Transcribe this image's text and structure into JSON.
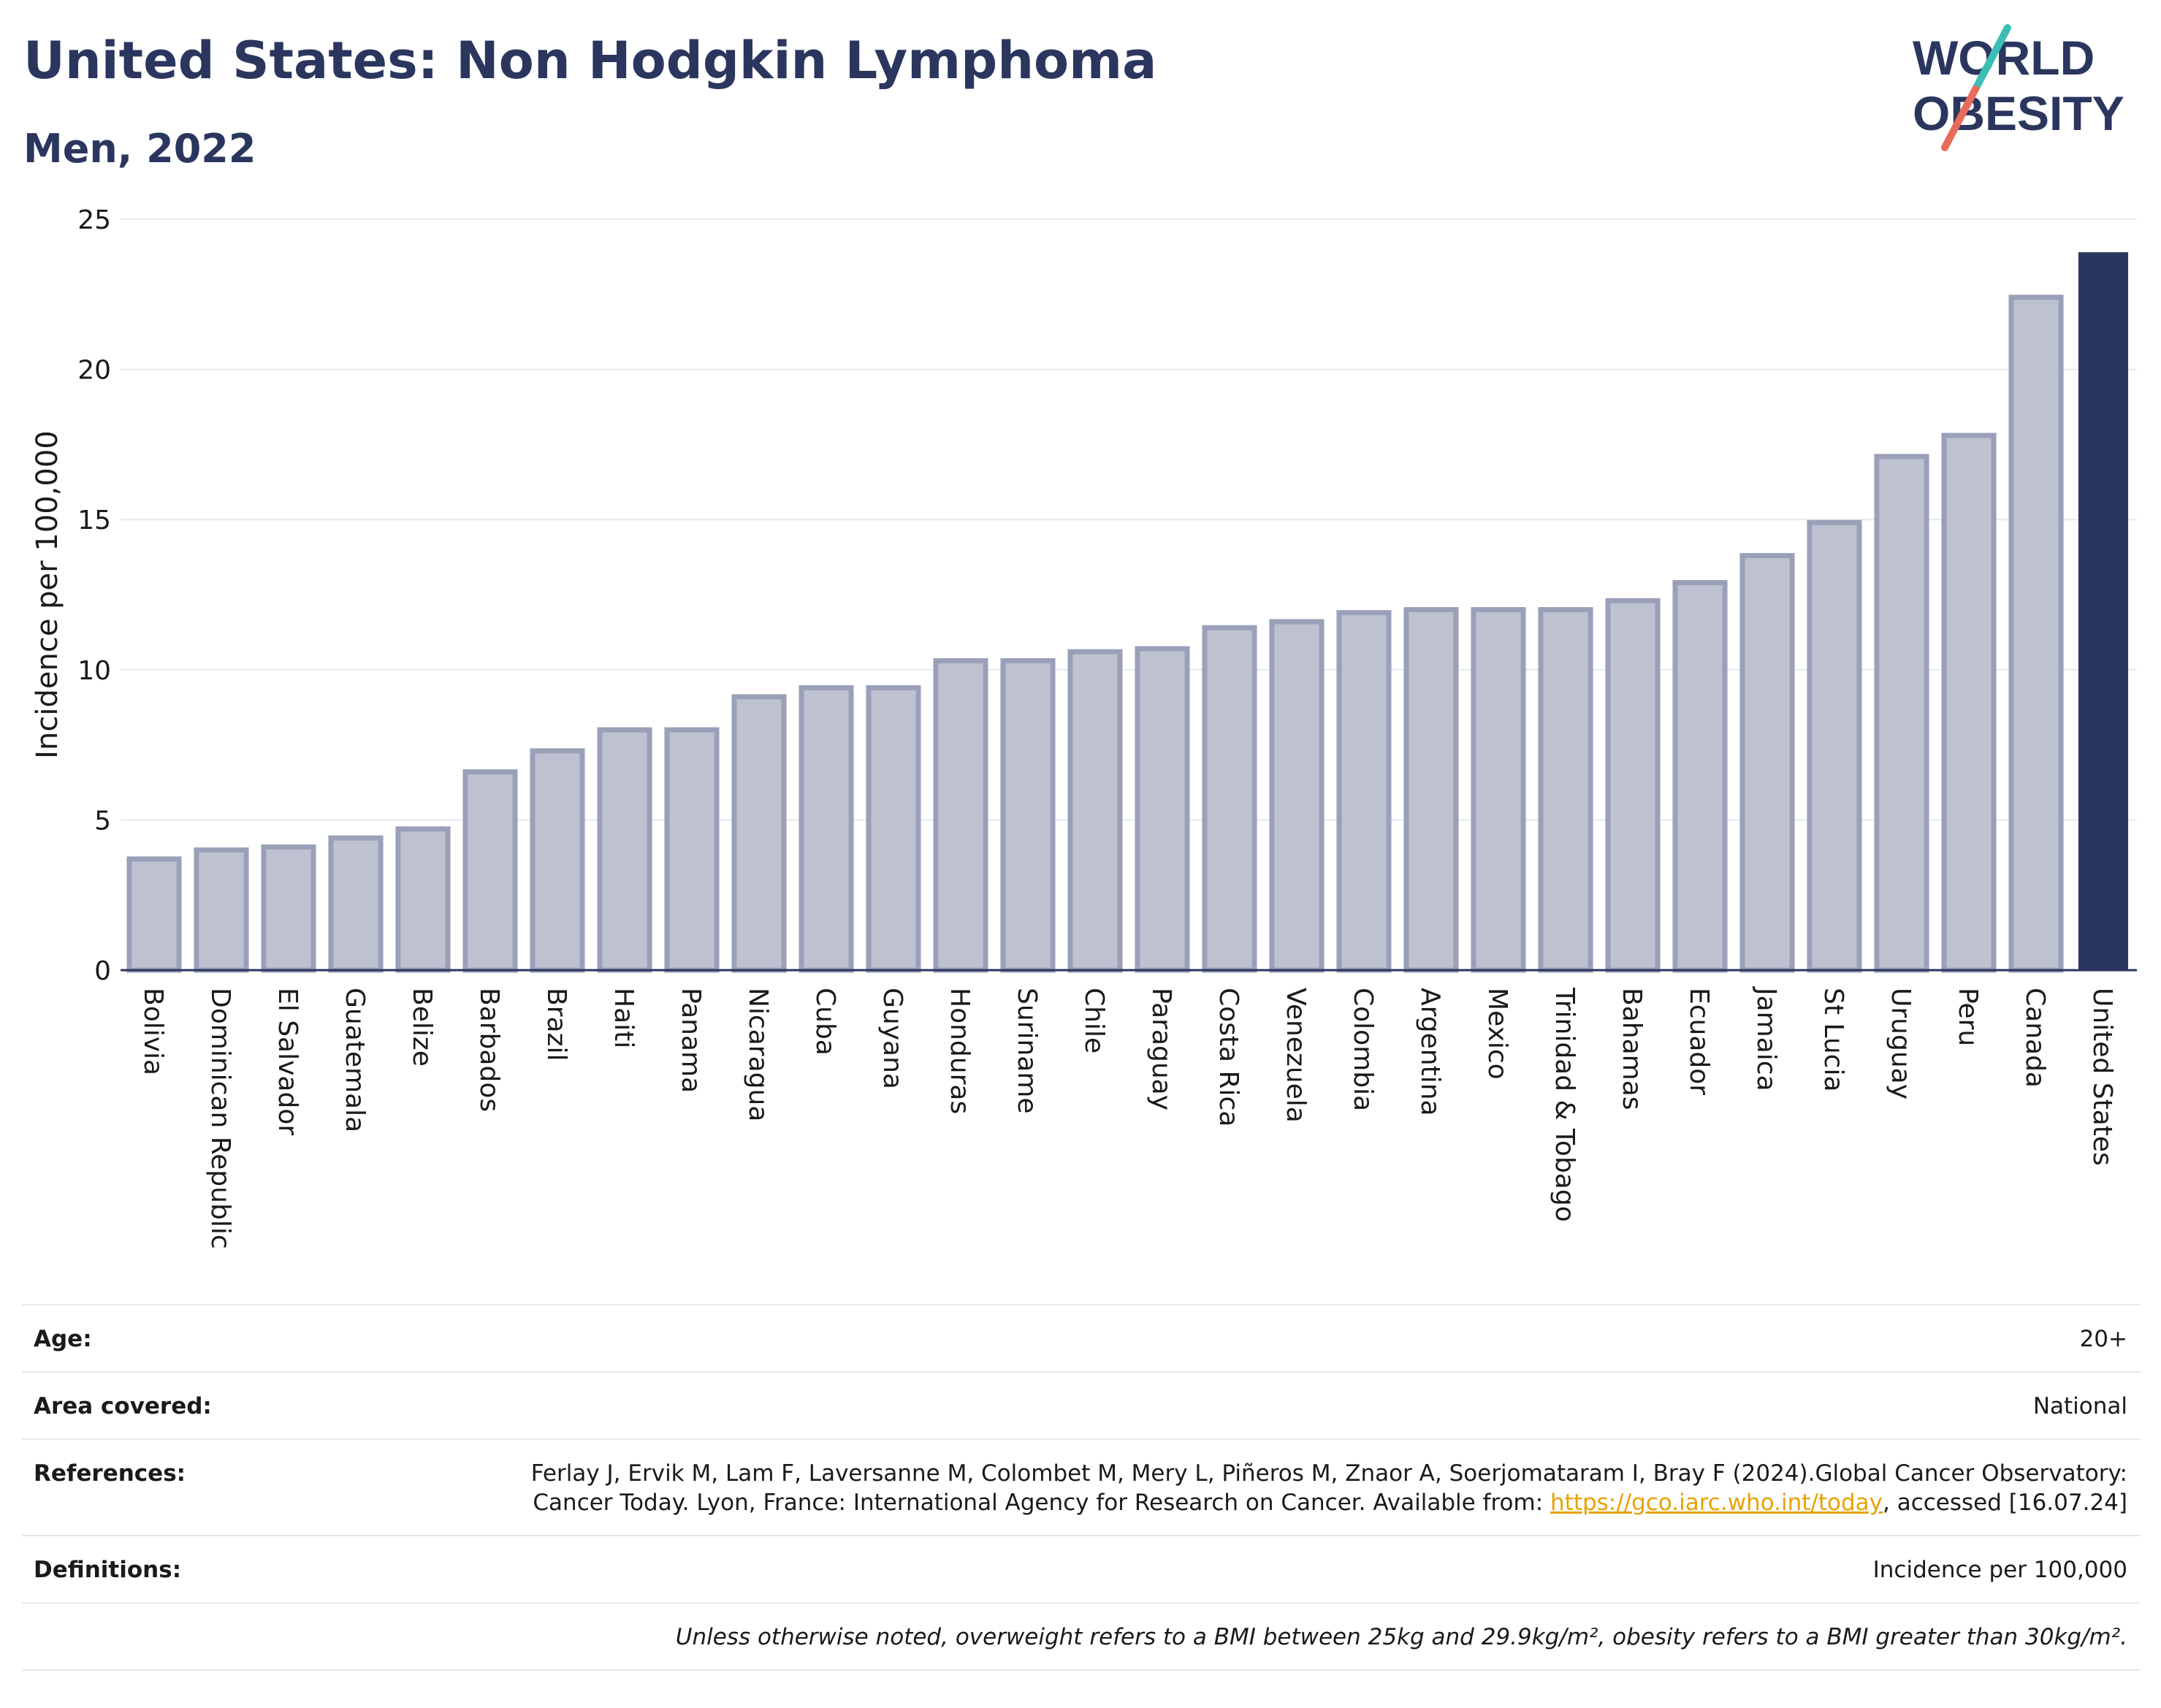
{
  "header": {
    "title": "United States: Non Hodgkin Lymphoma",
    "subtitle": "Men, 2022",
    "logo_line1": "WORLD",
    "logo_line2": "OBESITY"
  },
  "chart_data": {
    "type": "bar",
    "ylabel": "Incidence per 100,000",
    "ylim": [
      0,
      25
    ],
    "yticks": [
      "0",
      "5",
      "10",
      "15",
      "20",
      "25"
    ],
    "grid": true,
    "highlight": "United States",
    "categories": [
      "Bolivia",
      "Dominican Republic",
      "El Salvador",
      "Guatemala",
      "Belize",
      "Barbados",
      "Brazil",
      "Haiti",
      "Panama",
      "Nicaragua",
      "Cuba",
      "Guyana",
      "Honduras",
      "Suriname",
      "Chile",
      "Paraguay",
      "Costa Rica",
      "Venezuela",
      "Colombia",
      "Argentina",
      "Mexico",
      "Trinidad & Tobago",
      "Bahamas",
      "Ecuador",
      "Jamaica",
      "St Lucia",
      "Uruguay",
      "Peru",
      "Canada",
      "United States"
    ],
    "values": [
      3.7,
      4.0,
      4.1,
      4.4,
      4.7,
      6.6,
      7.3,
      8.0,
      8.0,
      9.1,
      9.4,
      9.4,
      10.3,
      10.3,
      10.6,
      10.7,
      11.4,
      11.6,
      11.9,
      12.0,
      12.0,
      12.0,
      12.3,
      12.9,
      13.8,
      14.9,
      17.1,
      17.8,
      22.4,
      23.9
    ],
    "colors": {
      "bar": "#bec2d0",
      "bar_edge": "#9aa0b8",
      "highlight": "#2b365f",
      "grid": "#e6e8f0",
      "axis": "#2b365f"
    }
  },
  "meta": {
    "age_label": "Age:",
    "age_value": "20+",
    "area_label": "Area covered:",
    "area_value": "National",
    "references_label": "References:",
    "references_text": "Ferlay J, Ervik M, Lam F, Laversanne M, Colombet M, Mery L, Piñeros M, Znaor A, Soerjomataram I, Bray F (2024).Global Cancer Observatory: Cancer Today. Lyon, France: International Agency for Research on Cancer. Available from:",
    "references_link": "https://gco.iarc.who.int/today",
    "references_tail": ", accessed [16.07.24]",
    "definitions_label": "Definitions:",
    "definitions_value": "Incidence per 100,000",
    "note": "Unless otherwise noted, overweight refers to a BMI between 25kg and 29.9kg/m², obesity refers to a BMI greater than 30kg/m²."
  }
}
